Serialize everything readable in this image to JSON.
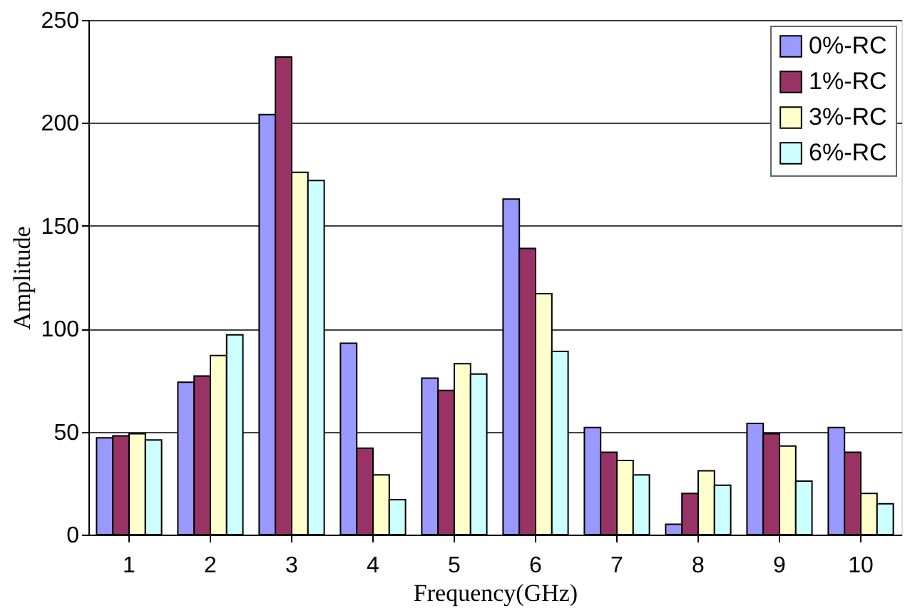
{
  "chart_data": {
    "type": "bar",
    "xlabel": "Frequency(GHz)",
    "ylabel": "Amplitude",
    "categories": [
      "1",
      "2",
      "3",
      "4",
      "5",
      "6",
      "7",
      "8",
      "9",
      "10"
    ],
    "series": [
      {
        "name": "0%-RC",
        "color": "#9999ff",
        "values": [
          47,
          74,
          204,
          93,
          76,
          163,
          52,
          5,
          54,
          52
        ]
      },
      {
        "name": "1%-RC",
        "color": "#993366",
        "values": [
          48,
          77,
          232,
          42,
          70,
          139,
          40,
          20,
          49,
          40
        ]
      },
      {
        "name": "3%-RC",
        "color": "#ffffcc",
        "values": [
          49,
          87,
          176,
          29,
          83,
          117,
          36,
          31,
          43,
          20
        ]
      },
      {
        "name": "6%-RC",
        "color": "#ccffff",
        "values": [
          46,
          97,
          172,
          17,
          78,
          89,
          29,
          24,
          26,
          15
        ]
      }
    ],
    "ylim": [
      0,
      250
    ],
    "yticks": [
      0,
      50,
      100,
      150,
      200,
      250
    ],
    "grid": "y",
    "legend": "top right"
  }
}
